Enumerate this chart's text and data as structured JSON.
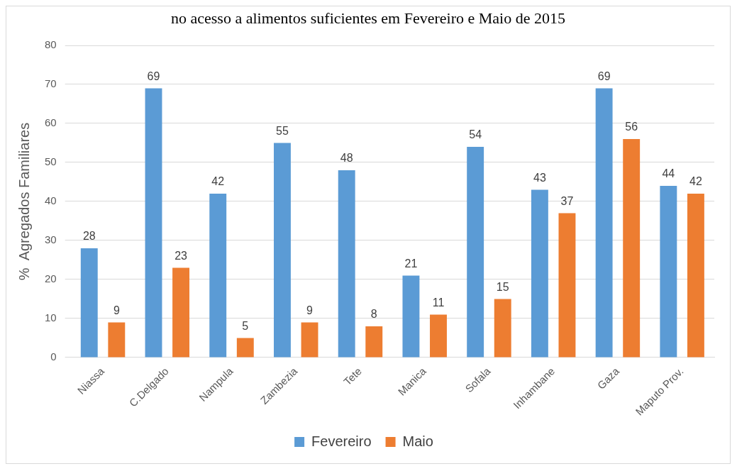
{
  "chart_data": {
    "type": "bar",
    "title": "no acesso a alimentos suficientes em Fevereiro e Maio de 2015",
    "ylabel": "%  Agregados Familiares",
    "categories": [
      "Niassa",
      "C.Delgado",
      "Nampula",
      "Zambezia",
      "Tete",
      "Manica",
      "Sofala",
      "Inhambane",
      "Gaza",
      "Maputo Prov."
    ],
    "series": [
      {
        "name": "Fevereiro",
        "color": "#5b9bd5",
        "values": [
          28,
          69,
          42,
          55,
          48,
          21,
          54,
          43,
          69,
          44
        ]
      },
      {
        "name": "Maio",
        "color": "#ed7d31",
        "values": [
          9,
          23,
          5,
          9,
          8,
          11,
          15,
          37,
          56,
          42
        ]
      }
    ],
    "ylim": [
      0,
      80
    ],
    "yticks": [
      0,
      10,
      20,
      30,
      40,
      50,
      60,
      70,
      80
    ],
    "grid": "y",
    "legend": "bottom",
    "data_labels": true
  }
}
